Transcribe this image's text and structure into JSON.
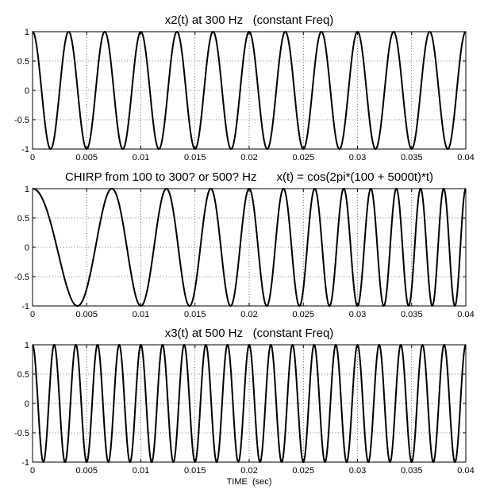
{
  "chart_data": [
    {
      "type": "line",
      "title": "x2(t) at 300 Hz   (constant Freq)",
      "xlabel": "",
      "ylabel": "",
      "xlim": [
        0,
        0.04
      ],
      "ylim": [
        -1,
        1
      ],
      "grid": true,
      "x_ticks": [
        0,
        0.005,
        0.01,
        0.015,
        0.02,
        0.025,
        0.03,
        0.035,
        0.04
      ],
      "x_tick_labels": [
        "0",
        "0.005",
        "0.01",
        "0.015",
        "0.02",
        "0.025",
        "0.03",
        "0.035",
        "0.04"
      ],
      "y_ticks": [
        1,
        0.5,
        0,
        -0.5,
        -1
      ],
      "y_tick_labels": [
        "1",
        "0.5",
        "0",
        "-0.5",
        "-1"
      ],
      "series": [
        {
          "function": "cos(2*pi*300*t)",
          "x_start": 0,
          "x_end": 0.04,
          "color": "#000000"
        }
      ]
    },
    {
      "type": "line",
      "title": "CHIRP from 100 to 300? or 500? Hz      x(t) = cos(2pi*(100 + 5000t)*t)",
      "xlabel": "",
      "ylabel": "",
      "xlim": [
        0,
        0.04
      ],
      "ylim": [
        -1,
        1
      ],
      "grid": true,
      "x_ticks": [
        0,
        0.005,
        0.01,
        0.015,
        0.02,
        0.025,
        0.03,
        0.035,
        0.04
      ],
      "x_tick_labels": [
        "0",
        "0.005",
        "0.01",
        "0.015",
        "0.02",
        "0.025",
        "0.03",
        "0.035",
        "0.04"
      ],
      "y_ticks": [
        1,
        0.5,
        0,
        -0.5,
        -1
      ],
      "y_tick_labels": [
        "1",
        "0.5",
        "0",
        "-0.5",
        "-1"
      ],
      "series": [
        {
          "function": "cos(2*pi*(100 + 5000*t)*t)",
          "x_start": 0,
          "x_end": 0.04,
          "color": "#000000"
        }
      ]
    },
    {
      "type": "line",
      "title": "x3(t) at 500 Hz   (constant Freq)",
      "xlabel": "TIME  (sec)",
      "ylabel": "",
      "xlim": [
        0,
        0.04
      ],
      "ylim": [
        -1,
        1
      ],
      "grid": true,
      "x_ticks": [
        0,
        0.005,
        0.01,
        0.015,
        0.02,
        0.025,
        0.03,
        0.035,
        0.04
      ],
      "x_tick_labels": [
        "0",
        "0.005",
        "0.01",
        "0.015",
        "0.02",
        "0.025",
        "0.03",
        "0.035",
        "0.04"
      ],
      "y_ticks": [
        1,
        0.5,
        0,
        -0.5,
        -1
      ],
      "y_tick_labels": [
        "1",
        "0.5",
        "0",
        "-0.5",
        "-1"
      ],
      "series": [
        {
          "function": "cos(2*pi*500*t)",
          "x_start": 0,
          "x_end": 0.04,
          "color": "#000000"
        }
      ]
    }
  ]
}
